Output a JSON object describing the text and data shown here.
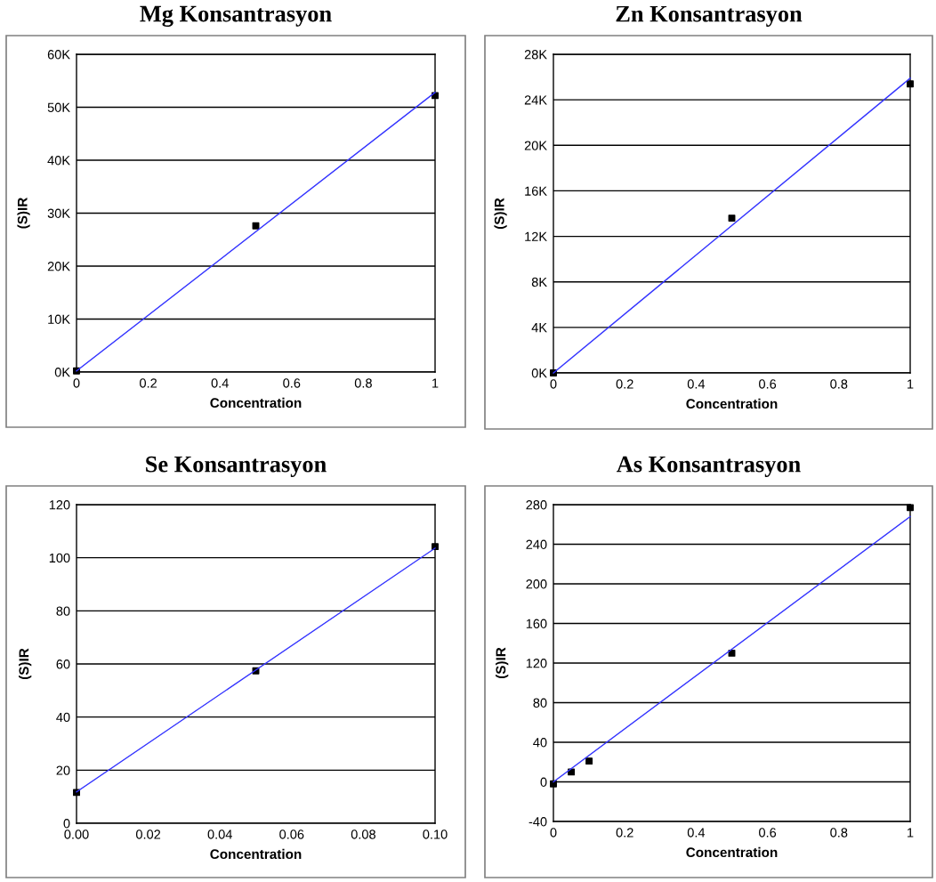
{
  "chart_data": [
    {
      "type": "scatter",
      "title": "Mg Konsantrasyon",
      "xlabel": "Concentration",
      "ylabel": "(S)IR",
      "grid": "y",
      "marker": "square",
      "xlim": [
        0,
        1
      ],
      "xticks": [
        0,
        0.2,
        0.4,
        0.6,
        0.8,
        1
      ],
      "ylim": [
        0,
        60000
      ],
      "yticks": [
        {
          "value": 0,
          "label": "0K"
        },
        {
          "value": 10000,
          "label": "10K"
        },
        {
          "value": 20000,
          "label": "20K"
        },
        {
          "value": 30000,
          "label": "30K"
        },
        {
          "value": 40000,
          "label": "40K"
        },
        {
          "value": 50000,
          "label": "50K"
        },
        {
          "value": 60000,
          "label": "60K"
        }
      ],
      "series": [
        {
          "color": "#000000",
          "x": [
            0,
            0.5,
            1
          ],
          "values": [
            200,
            27600,
            52200
          ]
        },
        {
          "type": "line",
          "color": "#3333ff",
          "marker": "none",
          "line_style": "solid",
          "x": [
            0,
            1
          ],
          "values": [
            200,
            52800
          ]
        }
      ]
    },
    {
      "type": "scatter",
      "title": "Zn Konsantrasyon",
      "xlabel": "Concentration",
      "ylabel": "(S)IR",
      "grid": "y",
      "marker": "square",
      "xlim": [
        0,
        1
      ],
      "xticks": [
        0,
        0.2,
        0.4,
        0.6,
        0.8,
        1
      ],
      "ylim": [
        0,
        28000
      ],
      "yticks": [
        {
          "value": 0,
          "label": "0K"
        },
        {
          "value": 4000,
          "label": "4K"
        },
        {
          "value": 8000,
          "label": "8K"
        },
        {
          "value": 12000,
          "label": "12K"
        },
        {
          "value": 16000,
          "label": "16K"
        },
        {
          "value": 20000,
          "label": "20K"
        },
        {
          "value": 24000,
          "label": "24K"
        },
        {
          "value": 28000,
          "label": "28K"
        }
      ],
      "series": [
        {
          "color": "#000000",
          "x": [
            0,
            0.5,
            1
          ],
          "values": [
            0,
            13600,
            25400
          ]
        },
        {
          "type": "line",
          "color": "#3333ff",
          "marker": "none",
          "line_style": "solid",
          "x": [
            0,
            1
          ],
          "values": [
            0,
            25900
          ]
        }
      ]
    },
    {
      "type": "scatter",
      "title": "Se Konsantrasyon",
      "xlabel": "Concentration",
      "ylabel": "(S)IR",
      "grid": "y",
      "marker": "square",
      "xlim": [
        0,
        0.1
      ],
      "xticks": [
        {
          "value": 0,
          "label": "0.00"
        },
        {
          "value": 0.02,
          "label": "0.02"
        },
        {
          "value": 0.04,
          "label": "0.04"
        },
        {
          "value": 0.06,
          "label": "0.06"
        },
        {
          "value": 0.08,
          "label": "0.08"
        },
        {
          "value": 0.1,
          "label": "0.10"
        }
      ],
      "ylim": [
        0,
        120
      ],
      "yticks": [
        0,
        20,
        40,
        60,
        80,
        100,
        120
      ],
      "series": [
        {
          "color": "#000000",
          "x": [
            0,
            0.05,
            0.1
          ],
          "values": [
            11.6,
            57.4,
            104.2
          ]
        },
        {
          "type": "line",
          "color": "#3333ff",
          "marker": "none",
          "line_style": "solid",
          "x": [
            0,
            0.1
          ],
          "values": [
            11.8,
            103.6
          ]
        }
      ]
    },
    {
      "type": "scatter",
      "title": "As Konsantrasyon",
      "xlabel": "Concentration",
      "ylabel": "(S)IR",
      "grid": "y",
      "marker": "square",
      "xlim": [
        0,
        1
      ],
      "xticks": [
        0,
        0.2,
        0.4,
        0.6,
        0.8,
        1
      ],
      "ylim": [
        -40,
        280
      ],
      "yticks": [
        -40,
        0,
        40,
        80,
        120,
        160,
        200,
        240,
        280
      ],
      "series": [
        {
          "color": "#000000",
          "x": [
            0,
            0.05,
            0.1,
            0.5,
            1
          ],
          "values": [
            -2,
            10,
            21,
            130,
            277
          ]
        },
        {
          "type": "line",
          "color": "#3333ff",
          "marker": "none",
          "line_style": "solid",
          "x": [
            0,
            1
          ],
          "values": [
            0,
            268
          ]
        }
      ]
    }
  ]
}
